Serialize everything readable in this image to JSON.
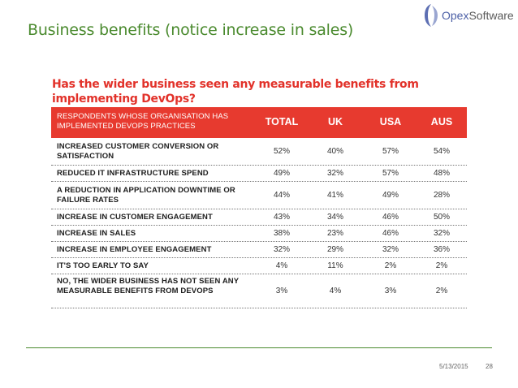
{
  "slide": {
    "title": "Business benefits (notice increase in sales)",
    "date": "5/13/2015",
    "page_number": "28"
  },
  "logo": {
    "text_part1": "Opex",
    "text_part2": "Software",
    "icon": "opex-logo-icon"
  },
  "survey": {
    "question": "Has the wider business seen any measurable benefits from implementing DevOps?",
    "header": {
      "respondents": "RESPONDENTS WHOSE ORGANISATION HAS IMPLEMENTED DEVOPS PRACTICES",
      "columns": [
        "TOTAL",
        "UK",
        "USA",
        "AUS"
      ]
    },
    "rows": [
      {
        "label": "INCREASED CUSTOMER CONVERSION OR SATISFACTION",
        "values": [
          "52%",
          "40%",
          "57%",
          "54%"
        ]
      },
      {
        "label": "REDUCED IT INFRASTRUCTURE SPEND",
        "values": [
          "49%",
          "32%",
          "57%",
          "48%"
        ]
      },
      {
        "label": "A REDUCTION IN APPLICATION DOWNTIME OR FAILURE RATES",
        "values": [
          "44%",
          "41%",
          "49%",
          "28%"
        ]
      },
      {
        "label": "INCREASE IN CUSTOMER ENGAGEMENT",
        "values": [
          "43%",
          "34%",
          "46%",
          "50%"
        ]
      },
      {
        "label": "INCREASE IN SALES",
        "values": [
          "38%",
          "23%",
          "46%",
          "32%"
        ]
      },
      {
        "label": "INCREASE IN EMPLOYEE ENGAGEMENT",
        "values": [
          "32%",
          "29%",
          "32%",
          "36%"
        ]
      },
      {
        "label": "IT'S TOO EARLY TO SAY",
        "values": [
          "4%",
          "11%",
          "2%",
          "2%"
        ]
      },
      {
        "label": "NO, THE WIDER BUSINESS HAS NOT SEEN ANY MEASURABLE BENEFITS FROM DEVOPS",
        "values": [
          "3%",
          "4%",
          "3%",
          "2%"
        ]
      }
    ]
  },
  "colors": {
    "title_green": "#4a8a2e",
    "accent_red": "#e73a2f",
    "logo_blue": "#4b5fa6"
  }
}
